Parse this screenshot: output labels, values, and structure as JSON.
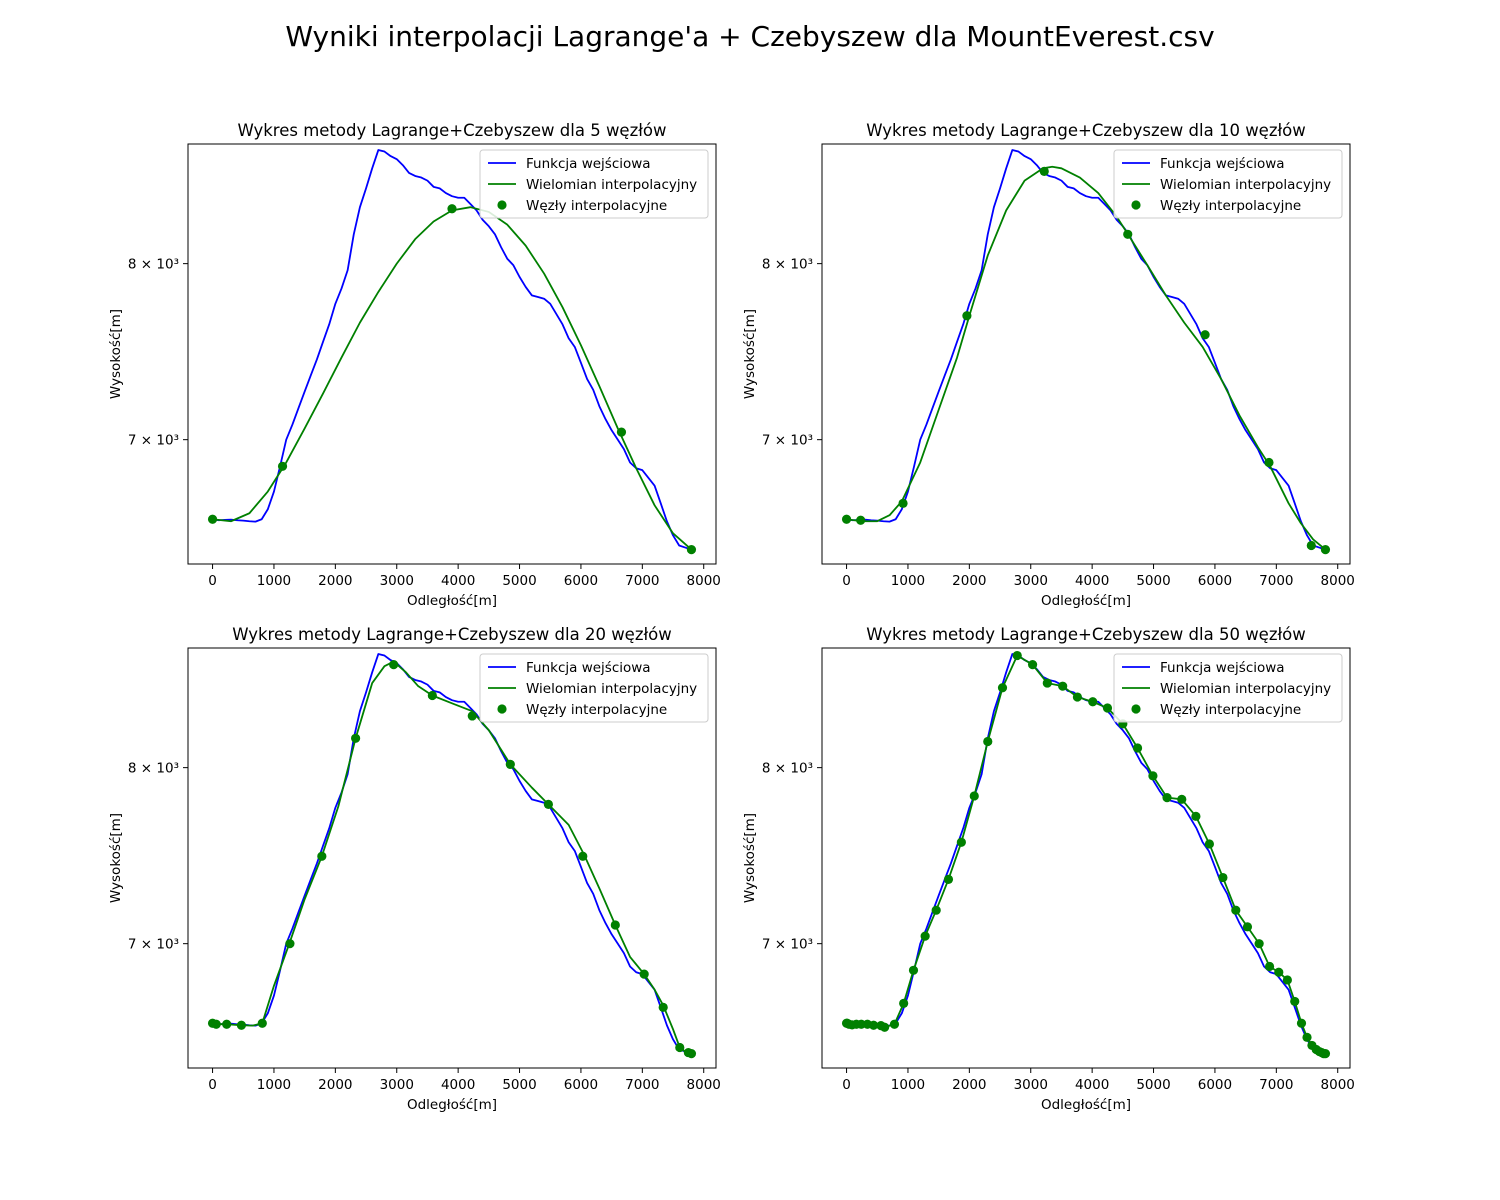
{
  "figure": {
    "title": "Wyniki interpolacji Lagrange'a + Czebyszew dla MountEverest.csv"
  },
  "colors": {
    "input_function": "#0000ff",
    "polynomial": "#008000",
    "nodes": "#008000"
  },
  "input_profile": {
    "x": [
      0,
      100,
      200,
      300,
      400,
      500,
      600,
      700,
      800,
      900,
      1000,
      1100,
      1200,
      1300,
      1400,
      1500,
      1600,
      1700,
      1800,
      1900,
      2000,
      2100,
      2200,
      2300,
      2400,
      2500,
      2600,
      2700,
      2800,
      2900,
      3000,
      3100,
      3200,
      3300,
      3400,
      3500,
      3600,
      3700,
      3800,
      3900,
      4000,
      4100,
      4200,
      4300,
      4400,
      4500,
      4600,
      4700,
      4800,
      4900,
      5000,
      5100,
      5200,
      5300,
      5400,
      5500,
      5600,
      5700,
      5800,
      5900,
      6000,
      6100,
      6200,
      6300,
      6400,
      6500,
      6600,
      6700,
      6800,
      6900,
      7000,
      7100,
      7200,
      7300,
      7400,
      7500,
      7600,
      7700,
      7800
    ],
    "y": [
      6590,
      6585,
      6587,
      6588,
      6585,
      6583,
      6580,
      6578,
      6590,
      6640,
      6730,
      6860,
      7000,
      7080,
      7170,
      7260,
      7350,
      7440,
      7540,
      7640,
      7760,
      7850,
      7960,
      8180,
      8350,
      8470,
      8600,
      8720,
      8710,
      8680,
      8660,
      8620,
      8570,
      8550,
      8540,
      8520,
      8480,
      8470,
      8440,
      8420,
      8410,
      8410,
      8370,
      8330,
      8270,
      8230,
      8180,
      8100,
      8030,
      7990,
      7920,
      7860,
      7810,
      7800,
      7790,
      7760,
      7700,
      7640,
      7560,
      7510,
      7420,
      7330,
      7270,
      7180,
      7110,
      7050,
      7000,
      6950,
      6880,
      6850,
      6840,
      6800,
      6760,
      6670,
      6580,
      6510,
      6460,
      6450,
      6440
    ]
  },
  "charts": [
    {
      "title": "Wykres metody Lagrange+Czebyszew dla 5 węzłów",
      "xlabel": "Odległość[m]",
      "ylabel": "Wysokość[m]",
      "legend": {
        "input": "Funkcja wejściowa",
        "poly": "Wielomian interpolacyjny",
        "nodes": "Węzły interpolacyjne"
      },
      "xticks": [
        "0",
        "1000",
        "2000",
        "3000",
        "4000",
        "5000",
        "6000",
        "7000",
        "8000"
      ],
      "yticks": [
        "8 × 10³",
        "7 × 10³"
      ]
    },
    {
      "title": "Wykres metody Lagrange+Czebyszew dla 10 węzłów",
      "xlabel": "Odległość[m]",
      "ylabel": "Wysokość[m]",
      "legend": {
        "input": "Funkcja wejściowa",
        "poly": "Wielomian interpolacyjny",
        "nodes": "Węzły interpolacyjne"
      },
      "xticks": [
        "0",
        "1000",
        "2000",
        "3000",
        "4000",
        "5000",
        "6000",
        "7000",
        "8000"
      ],
      "yticks": [
        "8 × 10³",
        "7 × 10³"
      ]
    },
    {
      "title": "Wykres metody Lagrange+Czebyszew dla 20 węzłów",
      "xlabel": "Odległość[m]",
      "ylabel": "Wysokość[m]",
      "legend": {
        "input": "Funkcja wejściowa",
        "poly": "Wielomian interpolacyjny",
        "nodes": "Węzły interpolacyjne"
      },
      "xticks": [
        "0",
        "1000",
        "2000",
        "3000",
        "4000",
        "5000",
        "6000",
        "7000",
        "8000"
      ],
      "yticks": [
        "8 × 10³",
        "7 × 10³"
      ]
    },
    {
      "title": "Wykres metody Lagrange+Czebyszew dla 50 węzłów",
      "xlabel": "Odległość[m]",
      "ylabel": "Wysokość[m]",
      "legend": {
        "input": "Funkcja wejściowa",
        "poly": "Wielomian interpolacyjny",
        "nodes": "Węzły interpolacyjne"
      },
      "xticks": [
        "0",
        "1000",
        "2000",
        "3000",
        "4000",
        "5000",
        "6000",
        "7000",
        "8000"
      ],
      "yticks": [
        "8 × 10³",
        "7 × 10³"
      ]
    }
  ],
  "chart_data": [
    {
      "type": "line",
      "title": "Wykres metody Lagrange+Czebyszew dla 5 węzłów",
      "xlabel": "Odległość[m]",
      "ylabel": "Wysokość[m]",
      "xlim": [
        -400,
        8200
      ],
      "ylim": [
        6370,
        8760
      ],
      "y_scale": "log",
      "legend_position": "upper-right",
      "series": [
        {
          "name": "Funkcja wejściowa",
          "kind": "line",
          "source": "input_profile"
        },
        {
          "name": "Wielomian interpolacyjny",
          "kind": "line",
          "x": [
            0,
            300,
            600,
            900,
            1200,
            1500,
            1800,
            2100,
            2400,
            2700,
            3000,
            3300,
            3600,
            3900,
            4200,
            4500,
            4800,
            5100,
            5400,
            5700,
            6000,
            6300,
            6600,
            6900,
            7200,
            7500,
            7800
          ],
          "y": [
            6590,
            6580,
            6620,
            6730,
            6880,
            7060,
            7250,
            7450,
            7650,
            7830,
            8000,
            8150,
            8260,
            8330,
            8350,
            8320,
            8240,
            8110,
            7940,
            7740,
            7520,
            7290,
            7060,
            6850,
            6660,
            6520,
            6440
          ]
        },
        {
          "name": "Węzły interpolacyjne",
          "kind": "scatter",
          "x": [
            0,
            1140,
            3900,
            6660,
            7800
          ],
          "y": [
            6590,
            6860,
            8340,
            7040,
            6440
          ]
        }
      ]
    },
    {
      "type": "line",
      "title": "Wykres metody Lagrange+Czebyszew dla 10 węzłów",
      "xlabel": "Odległość[m]",
      "ylabel": "Wysokość[m]",
      "xlim": [
        -400,
        8200
      ],
      "ylim": [
        6370,
        8760
      ],
      "y_scale": "log",
      "legend_position": "upper-right",
      "series": [
        {
          "name": "Funkcja wejściowa",
          "kind": "line",
          "source": "input_profile"
        },
        {
          "name": "Wielomian interpolacyjny",
          "kind": "line",
          "x": [
            0,
            250,
            500,
            700,
            900,
            1200,
            1500,
            1800,
            2000,
            2300,
            2600,
            2900,
            3200,
            3350,
            3500,
            3800,
            4100,
            4400,
            4600,
            4900,
            5200,
            5500,
            5800,
            6100,
            6400,
            6700,
            6900,
            7200,
            7400,
            7600,
            7800
          ],
          "y": [
            6590,
            6580,
            6580,
            6610,
            6680,
            6880,
            7160,
            7450,
            7690,
            8050,
            8330,
            8520,
            8600,
            8610,
            8600,
            8540,
            8440,
            8290,
            8170,
            7990,
            7810,
            7650,
            7510,
            7330,
            7130,
            6960,
            6860,
            6670,
            6570,
            6490,
            6440
          ]
        },
        {
          "name": "Węzły interpolacyjne",
          "kind": "scatter",
          "x": [
            0,
            230,
            920,
            1960,
            3220,
            4580,
            5840,
            6880,
            7570,
            7800
          ],
          "y": [
            6590,
            6585,
            6670,
            7690,
            8580,
            8180,
            7580,
            6880,
            6460,
            6440
          ]
        }
      ]
    },
    {
      "type": "line",
      "title": "Wykres metody Lagrange+Czebyszew dla 20 węzłów",
      "xlabel": "Odległość[m]",
      "ylabel": "Wysokość[m]",
      "xlim": [
        -400,
        8200
      ],
      "ylim": [
        6370,
        8760
      ],
      "y_scale": "log",
      "legend_position": "upper-right",
      "series": [
        {
          "name": "Funkcja wejściowa",
          "kind": "line",
          "source": "input_profile"
        },
        {
          "name": "Wielomian interpolacyjny",
          "kind": "line",
          "x": [
            0,
            60,
            200,
            460,
            650,
            810,
            1000,
            1250,
            1500,
            1780,
            2050,
            2330,
            2600,
            2800,
            2950,
            3150,
            3350,
            3580,
            3900,
            4230,
            4500,
            4850,
            5200,
            5470,
            5800,
            6050,
            6300,
            6560,
            6800,
            7030,
            7200,
            7340,
            7500,
            7610,
            7720,
            7800
          ],
          "y": [
            6590,
            6585,
            6586,
            6580,
            6578,
            6590,
            6780,
            7000,
            7240,
            7480,
            7770,
            8180,
            8530,
            8640,
            8670,
            8600,
            8510,
            8450,
            8400,
            8350,
            8230,
            8020,
            7880,
            7780,
            7660,
            7490,
            7300,
            7100,
            6930,
            6840,
            6760,
            6680,
            6560,
            6470,
            6445,
            6440
          ]
        },
        {
          "name": "Węzły interpolacyjne",
          "kind": "scatter",
          "x": [
            0,
            60,
            230,
            470,
            810,
            1260,
            1780,
            2330,
            2950,
            3580,
            4230,
            4850,
            5470,
            6030,
            6560,
            7030,
            7340,
            7610,
            7750,
            7800
          ],
          "y": [
            6590,
            6585,
            6585,
            6580,
            6590,
            7000,
            7480,
            8180,
            8650,
            8450,
            8320,
            8020,
            7780,
            7480,
            7100,
            6840,
            6670,
            6470,
            6445,
            6440
          ]
        }
      ]
    },
    {
      "type": "line",
      "title": "Wykres metody Lagrange+Czebyszew dla 50 węzłów",
      "xlabel": "Odległość[m]",
      "ylabel": "Wysokość[m]",
      "xlim": [
        -400,
        8200
      ],
      "ylim": [
        6370,
        8760
      ],
      "y_scale": "log",
      "legend_position": "upper-right",
      "series": [
        {
          "name": "Funkcja wejściowa",
          "kind": "line",
          "source": "input_profile"
        },
        {
          "name": "Wielomian interpolacyjny",
          "kind": "line",
          "source": "nodes"
        },
        {
          "name": "Węzły interpolacyjne",
          "kind": "scatter",
          "x": [
            0,
            10,
            40,
            90,
            160,
            240,
            340,
            440,
            560,
            620,
            780,
            930,
            1090,
            1280,
            1460,
            1660,
            1870,
            2080,
            2300,
            2540,
            2780,
            3030,
            3270,
            3520,
            3760,
            4010,
            4250,
            4500,
            4740,
            4990,
            5220,
            5460,
            5690,
            5910,
            6130,
            6340,
            6530,
            6720,
            6890,
            7040,
            7180,
            7300,
            7410,
            7500,
            7580,
            7650,
            7700,
            7740,
            7770,
            7800
          ],
          "y": [
            6590,
            6590,
            6585,
            6582,
            6585,
            6585,
            6585,
            6580,
            6578,
            6570,
            6585,
            6690,
            6860,
            7040,
            7180,
            7350,
            7560,
            7830,
            8160,
            8500,
            8710,
            8650,
            8530,
            8510,
            8440,
            8410,
            8370,
            8270,
            8120,
            7950,
            7820,
            7810,
            7710,
            7550,
            7360,
            7180,
            7090,
            7000,
            6880,
            6850,
            6810,
            6700,
            6590,
            6520,
            6480,
            6460,
            6450,
            6445,
            6440,
            6440
          ]
        }
      ]
    }
  ]
}
